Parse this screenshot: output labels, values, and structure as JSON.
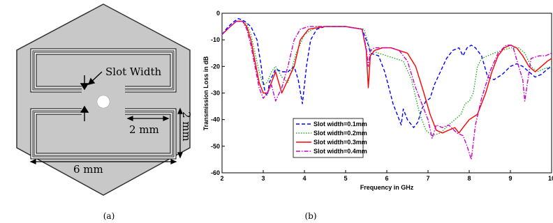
{
  "panel_a": {
    "caption": "(a)",
    "slot_label": "Slot Width",
    "dim_height": "2 mm",
    "dim_gap": "2 mm",
    "dim_width": "6 mm"
  },
  "panel_b": {
    "caption": "(b)"
  },
  "chart_data": {
    "type": "line",
    "xlabel": "Frequency in GHz",
    "ylabel": "Transmission Loss in dB",
    "xlim": [
      2,
      10
    ],
    "ylim": [
      -60,
      0
    ],
    "xticks": [
      2,
      3,
      4,
      5,
      6,
      7,
      8,
      9,
      10
    ],
    "yticks": [
      0,
      -10,
      -20,
      -30,
      -40,
      -50,
      -60
    ],
    "xtick_labels": [
      "2",
      "3",
      "4",
      "5",
      "6",
      "7",
      "8",
      "9",
      "10"
    ],
    "ytick_labels": [
      "0",
      "-10",
      "-20",
      "-30",
      "-40",
      "-50",
      "-60"
    ],
    "legend_position": "lower-left",
    "series": [
      {
        "name": "Slot width=0.1mm",
        "color": "#0000ff",
        "dash": "dashed",
        "x": [
          2.0,
          2.15,
          2.3,
          2.4,
          2.55,
          2.7,
          2.85,
          2.95,
          3.0,
          3.05,
          3.1,
          3.15,
          3.3,
          3.45,
          3.6,
          3.75,
          3.85,
          3.95,
          4.05,
          4.15,
          4.3,
          4.5,
          5.0,
          5.4,
          5.55,
          5.6,
          5.8,
          5.95,
          6.05,
          6.15,
          6.25,
          6.35,
          6.4,
          6.5,
          6.65,
          6.75,
          6.85,
          6.95,
          7.05,
          7.15,
          7.3,
          7.45,
          7.6,
          7.75,
          7.85,
          7.95,
          8.05,
          8.15,
          8.3,
          8.45,
          8.6,
          8.8,
          9.0,
          9.15,
          9.3,
          9.45,
          9.6,
          9.75,
          9.9,
          10.0
        ],
        "y": [
          -8,
          -5,
          -3,
          -2,
          -3,
          -5,
          -10,
          -20,
          -26,
          -30,
          -31,
          -26,
          -21,
          -22,
          -22,
          -20,
          -25,
          -34,
          -20,
          -10,
          -6,
          -5,
          -5,
          -6,
          -12,
          -15,
          -16,
          -22,
          -28,
          -34,
          -38,
          -42,
          -36,
          -40,
          -43,
          -41,
          -36,
          -33,
          -32,
          -27,
          -22,
          -17,
          -14,
          -13,
          -16,
          -13,
          -12,
          -13,
          -16,
          -24,
          -25,
          -23,
          -20,
          -19,
          -20,
          -22,
          -24,
          -23,
          -21,
          -20
        ]
      },
      {
        "name": "Slot width=0.2mm",
        "color": "#22aa22",
        "dash": "dotted",
        "x": [
          2.0,
          2.2,
          2.35,
          2.5,
          2.6,
          2.7,
          2.8,
          2.9,
          3.0,
          3.1,
          3.2,
          3.3,
          3.45,
          3.6,
          3.8,
          4.0,
          4.3,
          5.0,
          5.45,
          5.6,
          5.8,
          6.0,
          6.2,
          6.4,
          6.6,
          6.8,
          6.95,
          7.1,
          7.3,
          7.5,
          7.65,
          7.8,
          7.9,
          8.0,
          8.1,
          8.2,
          8.3,
          8.45,
          8.6,
          8.8,
          9.0,
          9.2,
          9.35,
          9.5,
          9.65,
          9.8,
          10.0
        ],
        "y": [
          -8,
          -5,
          -3,
          -3,
          -4,
          -8,
          -15,
          -22,
          -27,
          -26,
          -22,
          -20,
          -24,
          -26,
          -15,
          -8,
          -5,
          -5,
          -6,
          -14,
          -15,
          -16,
          -17,
          -18,
          -25,
          -38,
          -44,
          -46,
          -45,
          -42,
          -40,
          -38,
          -34,
          -33,
          -30,
          -20,
          -17,
          -16,
          -15,
          -14,
          -13,
          -13,
          -15,
          -20,
          -22,
          -21,
          -20
        ]
      },
      {
        "name": "Slot width=0.3mm",
        "color": "#ff0000",
        "dash": "solid",
        "x": [
          2.0,
          2.2,
          2.35,
          2.5,
          2.6,
          2.7,
          2.8,
          2.9,
          3.0,
          3.1,
          3.2,
          3.3,
          3.45,
          3.6,
          3.75,
          3.9,
          4.1,
          4.5,
          5.0,
          5.4,
          5.5,
          5.55,
          5.6,
          5.7,
          5.9,
          6.1,
          6.3,
          6.5,
          6.7,
          6.9,
          7.05,
          7.2,
          7.35,
          7.5,
          7.65,
          7.75,
          7.85,
          8.0,
          8.2,
          8.4,
          8.55,
          8.7,
          8.85,
          9.0,
          9.15,
          9.3,
          9.45,
          9.6,
          9.75,
          9.9,
          10.0
        ],
        "y": [
          -8,
          -5,
          -3,
          -3,
          -5,
          -10,
          -18,
          -26,
          -30,
          -30,
          -26,
          -22,
          -30,
          -25,
          -20,
          -10,
          -6,
          -5,
          -5,
          -6,
          -14,
          -28,
          -16,
          -14,
          -13,
          -13,
          -14,
          -15,
          -20,
          -30,
          -38,
          -44,
          -45,
          -44,
          -43,
          -45,
          -43,
          -40,
          -38,
          -30,
          -22,
          -16,
          -13,
          -12,
          -13,
          -16,
          -20,
          -22,
          -20,
          -18,
          -17
        ]
      },
      {
        "name": "Slot width=0.4mm",
        "color": "#cc00cc",
        "dash": "dashdot",
        "x": [
          2.0,
          2.2,
          2.35,
          2.5,
          2.6,
          2.7,
          2.8,
          2.9,
          3.0,
          3.1,
          3.2,
          3.3,
          3.45,
          3.6,
          3.75,
          3.9,
          4.1,
          4.5,
          5.0,
          5.4,
          5.5,
          5.55,
          5.6,
          5.7,
          5.9,
          6.1,
          6.3,
          6.5,
          6.7,
          6.85,
          7.0,
          7.1,
          7.2,
          7.35,
          7.5,
          7.7,
          7.85,
          7.95,
          8.05,
          8.15,
          8.3,
          8.5,
          8.7,
          8.9,
          9.05,
          9.2,
          9.3,
          9.35,
          9.5,
          9.7,
          9.85,
          10.0
        ],
        "y": [
          -8,
          -5,
          -3,
          -3,
          -6,
          -12,
          -20,
          -28,
          -32,
          -30,
          -27,
          -33,
          -28,
          -20,
          -10,
          -6,
          -5,
          -5,
          -5,
          -6,
          -13,
          -20,
          -14,
          -13,
          -13,
          -13,
          -14,
          -18,
          -28,
          -34,
          -40,
          -47,
          -42,
          -43,
          -42,
          -45,
          -46,
          -50,
          -55,
          -42,
          -32,
          -22,
          -15,
          -12,
          -12,
          -20,
          -25,
          -33,
          -17,
          -16,
          -16,
          -15
        ]
      }
    ]
  }
}
